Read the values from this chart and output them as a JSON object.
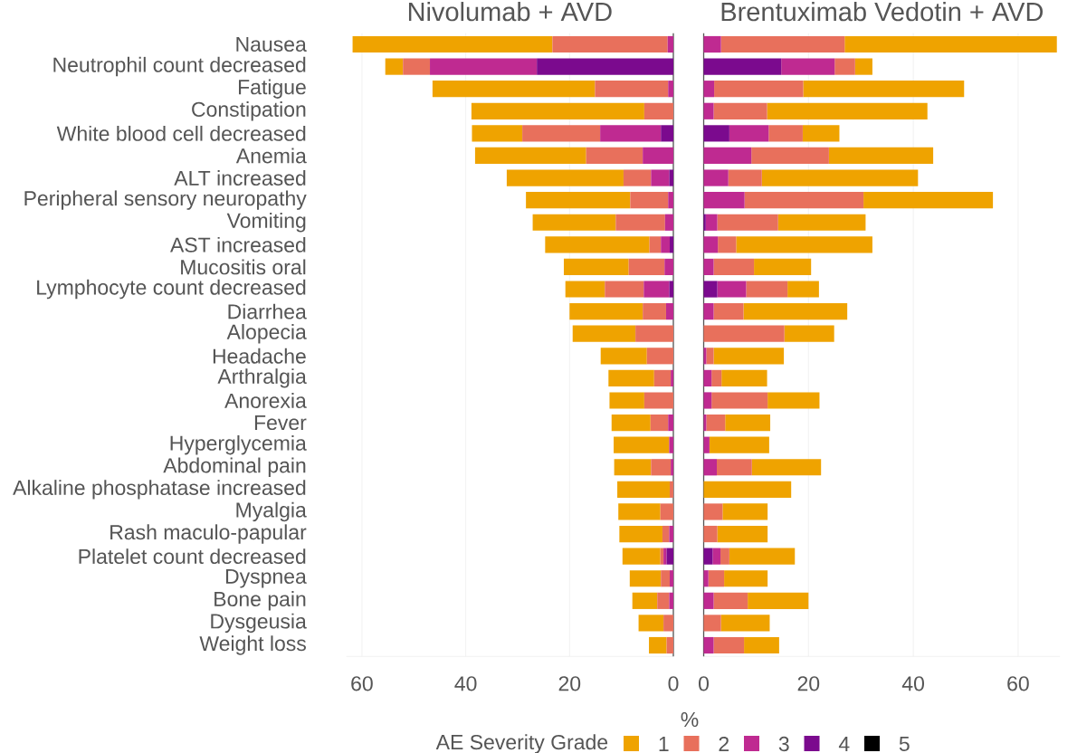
{
  "chart_data": [
    {
      "type": "bar",
      "orientation": "horizontal",
      "stacked": true,
      "title": "Nivolumab + AVD",
      "xlabel": "%",
      "legend_title": "AE Severity Grade",
      "legend": "bottom",
      "grid": "x",
      "categories": [
        "Nausea",
        "Neutrophil count decreased",
        "Fatigue",
        "Constipation",
        "White blood cell decreased",
        "Anemia",
        "ALT increased",
        "Peripheral sensory neuropathy",
        "Vomiting",
        "AST increased",
        "Mucositis oral",
        "Lymphocyte count decreased",
        "Diarrhea",
        "Alopecia",
        "Headache",
        "Arthralgia",
        "Anorexia",
        "Fever",
        "Hyperglycemia",
        "Abdominal pain",
        "Alkaline phosphatase increased",
        "Myalgia",
        "Rash maculo-papular",
        "Platelet count decreased",
        "Dyspnea",
        "Bone pain",
        "Dysgeusia",
        "Weight loss"
      ],
      "xlim": [
        63,
        0
      ],
      "xticks": [
        60,
        40,
        20,
        0
      ],
      "series": [
        {
          "name": "5",
          "color": "#000000",
          "values": [
            0,
            0,
            0,
            0,
            0,
            0,
            0,
            0,
            0,
            0,
            0,
            0,
            0,
            0,
            0,
            0,
            0,
            0,
            0,
            0,
            0,
            0,
            0,
            0,
            0,
            0,
            0,
            0
          ]
        },
        {
          "name": "4",
          "color": "#7b0a8e",
          "values": [
            0,
            26.3,
            0,
            0,
            2.4,
            0,
            0.8,
            0,
            0,
            0.7,
            0,
            0.8,
            0,
            0,
            0,
            0,
            0,
            0,
            0,
            0,
            0,
            0,
            0,
            1.3,
            0,
            0,
            0,
            0
          ]
        },
        {
          "name": "3",
          "color": "#bf2a91",
          "values": [
            1.1,
            20.6,
            1.0,
            0,
            11.7,
            5.9,
            3.5,
            1.0,
            1.6,
            1.7,
            1.7,
            4.9,
            1.4,
            0,
            0,
            0.5,
            0,
            1.0,
            0.8,
            0.5,
            0,
            0,
            0.8,
            0.6,
            0.7,
            0.8,
            0,
            0
          ]
        },
        {
          "name": "2",
          "color": "#e8705c",
          "values": [
            22.2,
            5.2,
            14.1,
            5.6,
            15.0,
            10.9,
            5.3,
            7.3,
            9.5,
            2.2,
            6.9,
            7.5,
            4.5,
            7.3,
            5.1,
            3.2,
            5.6,
            3.4,
            0,
            3.8,
            0.7,
            2.5,
            1.3,
            0.6,
            1.7,
            2.3,
            1.9,
            1.3
          ]
        },
        {
          "name": "1",
          "color": "#efa300",
          "values": [
            38.5,
            3.4,
            31.3,
            33.3,
            9.7,
            21.4,
            22.5,
            20.1,
            16.0,
            20.1,
            12.5,
            7.6,
            14.1,
            12.1,
            8.9,
            8.8,
            6.7,
            7.5,
            10.7,
            7.1,
            10.1,
            8.1,
            8.3,
            7.3,
            6.0,
            4.8,
            4.8,
            3.4
          ]
        }
      ]
    },
    {
      "type": "bar",
      "orientation": "horizontal",
      "stacked": true,
      "title": "Brentuximab Vedotin + AVD",
      "grid": "x",
      "tick_labels": "x",
      "categories": [
        null,
        null,
        null,
        null,
        null,
        null,
        null,
        null,
        null,
        null,
        null,
        null,
        null,
        null,
        null,
        null,
        null,
        null,
        null,
        null,
        null,
        null,
        null,
        null,
        null,
        null,
        null,
        null
      ],
      "xlim": [
        0,
        68
      ],
      "xticks": [
        0,
        20,
        40,
        60
      ],
      "series": [
        {
          "color": "#000000",
          "values": [
            0,
            0,
            0,
            0,
            0,
            0,
            0,
            0,
            0,
            0,
            0,
            0,
            0,
            0,
            0,
            0,
            0,
            0,
            0,
            0,
            0,
            0,
            0,
            0,
            0,
            0,
            0,
            0
          ]
        },
        {
          "color": "#7b0a8e",
          "values": [
            0,
            14.8,
            0,
            0,
            4.9,
            0,
            0,
            0,
            0.4,
            0,
            0,
            2.6,
            0,
            0,
            0,
            0,
            0,
            0,
            0,
            0,
            0,
            0,
            0,
            1.7,
            0,
            0,
            0,
            0
          ]
        },
        {
          "color": "#bf2a91",
          "values": [
            3.3,
            10.2,
            2.0,
            1.9,
            7.5,
            9.1,
            4.7,
            7.8,
            2.2,
            2.7,
            1.9,
            5.5,
            1.9,
            0,
            0.5,
            1.5,
            1.5,
            0.5,
            1.1,
            2.5,
            0,
            0,
            0,
            1.5,
            0.9,
            1.9,
            0,
            1.9
          ]
        },
        {
          "color": "#e8705c",
          "values": [
            23.6,
            3.9,
            17.0,
            10.2,
            6.5,
            14.8,
            6.4,
            22.7,
            11.6,
            3.5,
            7.7,
            7.9,
            5.7,
            15.4,
            1.4,
            1.9,
            10.7,
            3.6,
            0,
            6.7,
            0,
            3.6,
            2.6,
            1.7,
            3.0,
            6.5,
            3.3,
            5.8
          ]
        },
        {
          "color": "#efa300",
          "values": [
            40.5,
            3.3,
            30.7,
            30.6,
            7.0,
            19.9,
            29.8,
            24.7,
            16.7,
            26.0,
            10.9,
            6.0,
            19.8,
            9.5,
            13.4,
            8.7,
            9.9,
            8.6,
            11.4,
            13.2,
            16.7,
            8.6,
            9.6,
            12.5,
            8.3,
            11.6,
            9.3,
            6.7
          ]
        }
      ]
    }
  ]
}
